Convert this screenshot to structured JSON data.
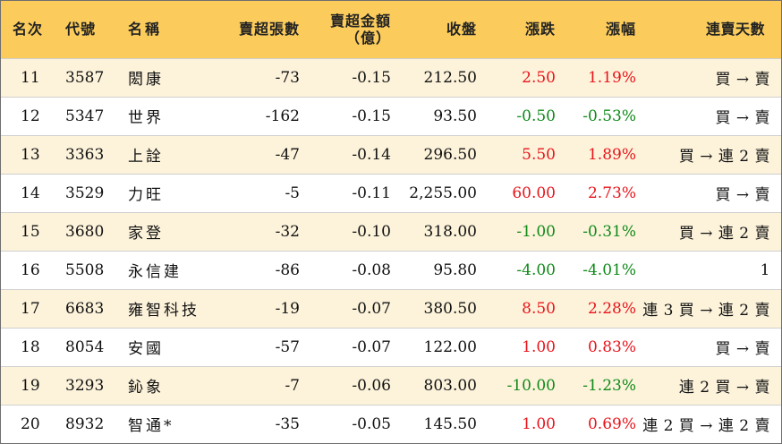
{
  "headers": {
    "rank": "名次",
    "code": "代號",
    "name": "名稱",
    "net_sell_lots": "賣超張數",
    "net_sell_amount_line1": "賣超金額",
    "net_sell_amount_line2": "（億）",
    "close": "收盤",
    "change": "漲跌",
    "change_pct": "漲幅",
    "streak": "連賣天數"
  },
  "colors": {
    "header_bg": "#fbcc5c",
    "alt_row_bg": "#fdf3db",
    "up": "#e8141b",
    "down": "#0f8a19"
  },
  "rows": [
    {
      "rank": "11",
      "code": "3587",
      "name": "閎康",
      "lots": "-73",
      "amount": "-0.15",
      "close": "212.50",
      "change": "2.50",
      "pct": "1.19%",
      "dir": "up",
      "streak": "買 → 賣"
    },
    {
      "rank": "12",
      "code": "5347",
      "name": "世界",
      "lots": "-162",
      "amount": "-0.15",
      "close": "93.50",
      "change": "-0.50",
      "pct": "-0.53%",
      "dir": "down",
      "streak": "買 → 賣"
    },
    {
      "rank": "13",
      "code": "3363",
      "name": "上詮",
      "lots": "-47",
      "amount": "-0.14",
      "close": "296.50",
      "change": "5.50",
      "pct": "1.89%",
      "dir": "up",
      "streak": "買 → 連 2 賣"
    },
    {
      "rank": "14",
      "code": "3529",
      "name": "力旺",
      "lots": "-5",
      "amount": "-0.11",
      "close": "2,255.00",
      "change": "60.00",
      "pct": "2.73%",
      "dir": "up",
      "streak": "買 → 賣"
    },
    {
      "rank": "15",
      "code": "3680",
      "name": "家登",
      "lots": "-32",
      "amount": "-0.10",
      "close": "318.00",
      "change": "-1.00",
      "pct": "-0.31%",
      "dir": "down",
      "streak": "買 → 連 2 賣"
    },
    {
      "rank": "16",
      "code": "5508",
      "name": "永信建",
      "lots": "-86",
      "amount": "-0.08",
      "close": "95.80",
      "change": "-4.00",
      "pct": "-4.01%",
      "dir": "down",
      "streak": "1"
    },
    {
      "rank": "17",
      "code": "6683",
      "name": "雍智科技",
      "lots": "-19",
      "amount": "-0.07",
      "close": "380.50",
      "change": "8.50",
      "pct": "2.28%",
      "dir": "up",
      "streak": "連 3 買 → 連 2 賣"
    },
    {
      "rank": "18",
      "code": "8054",
      "name": "安國",
      "lots": "-57",
      "amount": "-0.07",
      "close": "122.00",
      "change": "1.00",
      "pct": "0.83%",
      "dir": "up",
      "streak": "買 → 賣"
    },
    {
      "rank": "19",
      "code": "3293",
      "name": "鈊象",
      "lots": "-7",
      "amount": "-0.06",
      "close": "803.00",
      "change": "-10.00",
      "pct": "-1.23%",
      "dir": "down",
      "streak": "連 2 買 → 賣"
    },
    {
      "rank": "20",
      "code": "8932",
      "name": "智通*",
      "lots": "-35",
      "amount": "-0.05",
      "close": "145.50",
      "change": "1.00",
      "pct": "0.69%",
      "dir": "up",
      "streak": "連 2 買 → 連 2 賣"
    }
  ]
}
